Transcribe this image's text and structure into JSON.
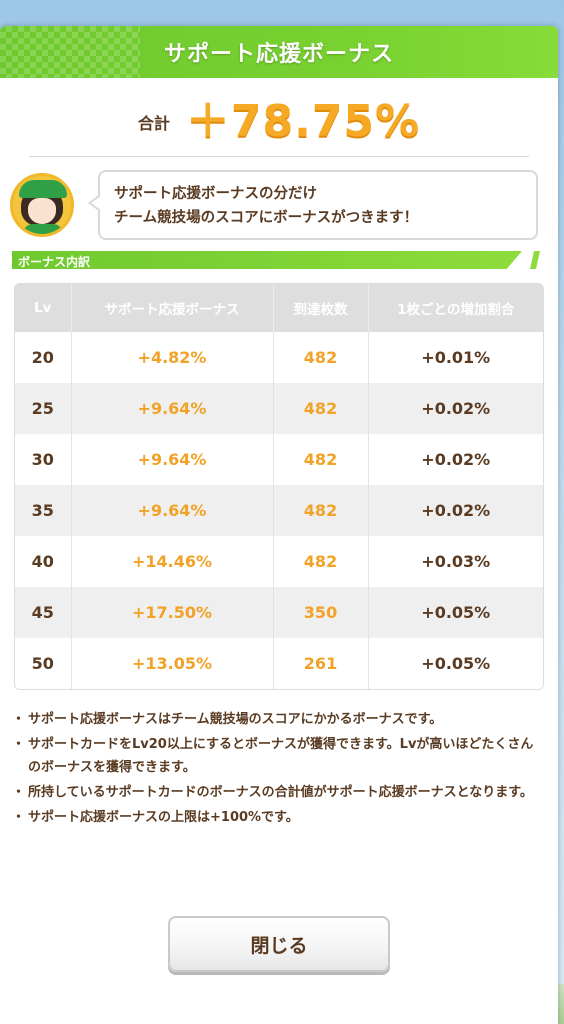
{
  "dialog": {
    "title": "サポート応援ボーナス",
    "total_label": "合計",
    "total_value": "＋78.75%",
    "message_line1": "サポート応援ボーナスの分だけ",
    "message_line2": "チーム競技場のスコアにボーナスがつきます！",
    "section_label": "ボーナス内訳",
    "close_label": "閉じる"
  },
  "table": {
    "headers": [
      "Lv",
      "サポート応援ボーナス",
      "到達枚数",
      "1枚ごとの増加割合"
    ],
    "rows": [
      {
        "lv": "20",
        "bonus": "+4.82%",
        "count": "482",
        "rate": "+0.01%"
      },
      {
        "lv": "25",
        "bonus": "+9.64%",
        "count": "482",
        "rate": "+0.02%"
      },
      {
        "lv": "30",
        "bonus": "+9.64%",
        "count": "482",
        "rate": "+0.02%"
      },
      {
        "lv": "35",
        "bonus": "+9.64%",
        "count": "482",
        "rate": "+0.02%"
      },
      {
        "lv": "40",
        "bonus": "+14.46%",
        "count": "482",
        "rate": "+0.03%"
      },
      {
        "lv": "45",
        "bonus": "+17.50%",
        "count": "350",
        "rate": "+0.05%"
      },
      {
        "lv": "50",
        "bonus": "+13.05%",
        "count": "261",
        "rate": "+0.05%"
      }
    ]
  },
  "notes": [
    "サポート応援ボーナスはチーム競技場のスコアにかかるボーナスです。",
    "サポートカードをLv20以上にするとボーナスが獲得できます。Lvが高いほどたくさんのボーナスを獲得できます。",
    "所持しているサポートカードのボーナスの合計値がサポート応援ボーナスとなります。",
    "サポート応援ボーナスの上限は+100%です。"
  ],
  "colors": {
    "header_green": "#78d130",
    "accent_orange": "#f2a226",
    "text_brown": "#5a3b22"
  }
}
